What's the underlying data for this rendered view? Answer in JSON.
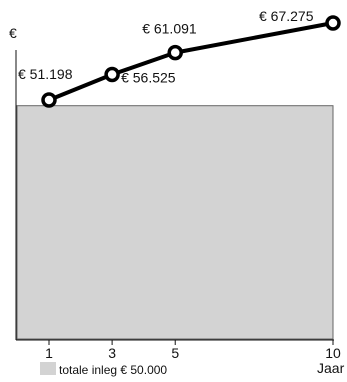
{
  "chart_data": {
    "type": "line",
    "y_axis_label": "€",
    "x_axis_label": "Jaar",
    "x_ticks": [
      "1",
      "3",
      "5",
      "10"
    ],
    "points": [
      {
        "x": 1,
        "value": 51198,
        "label": "€ 51.198"
      },
      {
        "x": 3,
        "value": 56525,
        "label": "€ 56.525"
      },
      {
        "x": 5,
        "value": 61091,
        "label": "€ 61.091"
      },
      {
        "x": 10,
        "value": 67275,
        "label": "€ 67.275"
      }
    ],
    "baseline": {
      "value": 50000,
      "color": "#d3d3d3"
    },
    "legend": {
      "label": "totale inleg € 50.000",
      "position": "bottom-left"
    },
    "line_color": "#000000",
    "grid": false
  }
}
